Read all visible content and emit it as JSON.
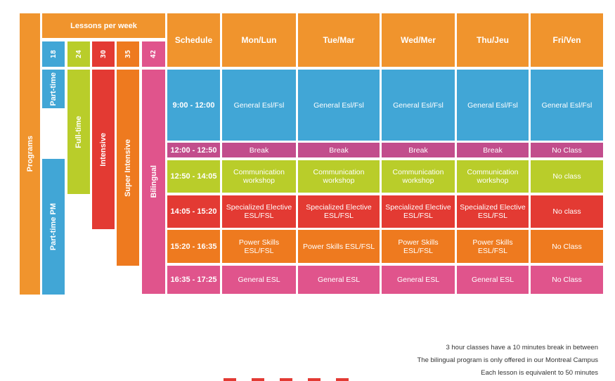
{
  "colors": {
    "orange": "#f0942d",
    "blue": "#41a6d6",
    "lime": "#b9cd2a",
    "red": "#e33a33",
    "dark_orange": "#ee7a1f",
    "pink": "#e0548c",
    "magenta": "#c24d8c"
  },
  "left": {
    "programs_label": "Programs",
    "lessons_header": "Lessons per week",
    "lessons": [
      "18",
      "24",
      "30",
      "35",
      "42"
    ],
    "programs": [
      "Part-time",
      "Full-time",
      "Intensive",
      "Super Intensive",
      "Bilingual",
      "Part-time PM"
    ]
  },
  "schedule": {
    "header": "Schedule",
    "days": [
      "Mon/Lun",
      "Tue/Mar",
      "Wed/Mer",
      "Thu/Jeu",
      "Fri/Ven"
    ],
    "rows": [
      {
        "time": "9:00 - 12:00",
        "cells": [
          "General Esl/Fsl",
          "General Esl/Fsl",
          "General Esl/Fsl",
          "General Esl/Fsl",
          "General Esl/Fsl"
        ]
      },
      {
        "time": "12:00 - 12:50",
        "cells": [
          "Break",
          "Break",
          "Break",
          "Break",
          "No Class"
        ]
      },
      {
        "time": "12:50 - 14:05",
        "cells": [
          "Communication workshop",
          "Communication workshop",
          "Communication workshop",
          "Communication workshop",
          "No class"
        ]
      },
      {
        "time": "14:05 - 15:20",
        "cells": [
          "Specialized Elective ESL/FSL",
          "Specialized Elective ESL/FSL",
          "Specialized Elective ESL/FSL",
          "Specialized Elective ESL/FSL",
          "No class"
        ]
      },
      {
        "time": "15:20 - 16:35",
        "cells": [
          "Power Skills ESL/FSL",
          "Power Skills ESL/FSL",
          "Power Skills ESL/FSL",
          "Power Skills ESL/FSL",
          "No Class"
        ]
      },
      {
        "time": "16:35 - 17:25",
        "cells": [
          "General ESL",
          "General ESL",
          "General ESL",
          "General ESL",
          "No Class"
        ]
      }
    ]
  },
  "notes": [
    "3 hour classes have a 10 minutes break in between",
    "The bilingual program is only offered in our Montreal Campus",
    "Each lesson is equivalent to 50 minutes"
  ]
}
